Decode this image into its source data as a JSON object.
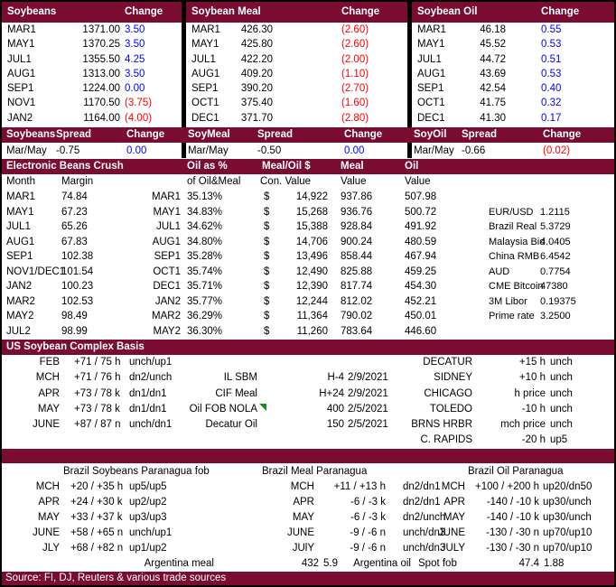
{
  "colors": {
    "header_bg": "#7A0B31",
    "positive": "#0000FF",
    "negative": "#FF0000",
    "comment_flag": "#1E8A1E",
    "border": "#000000"
  },
  "futures": {
    "panels": [
      {
        "title": "Soybeans",
        "change_label": "Change",
        "rows": [
          [
            "MAR1",
            "1371.00",
            "3.50",
            "up"
          ],
          [
            "MAY1",
            "1370.25",
            "3.50",
            "up"
          ],
          [
            "JUL1",
            "1355.50",
            "4.25",
            "up"
          ],
          [
            "AUG1",
            "1313.00",
            "3.50",
            "up"
          ],
          [
            "SEP1",
            "1224.00",
            "0.00",
            "up"
          ],
          [
            "NOV1",
            "1170.50",
            "(3.75)",
            "down"
          ],
          [
            "JAN2",
            "1164.00",
            "(4.00)",
            "down"
          ]
        ]
      },
      {
        "title": "Soybean Meal",
        "change_label": "Change",
        "rows": [
          [
            "MAR1",
            "426.30",
            "(2.60)",
            "down"
          ],
          [
            "MAY1",
            "425.80",
            "(2.60)",
            "down"
          ],
          [
            "JUL1",
            "422.20",
            "(2.00)",
            "down"
          ],
          [
            "AUG1",
            "409.20",
            "(1.10)",
            "down"
          ],
          [
            "SEP1",
            "390.20",
            "(2.70)",
            "down"
          ],
          [
            "OCT1",
            "375.40",
            "(1.60)",
            "down"
          ],
          [
            "DEC1",
            "371.70",
            "(2.80)",
            "down"
          ]
        ]
      },
      {
        "title": "Soybean Oil",
        "change_label": "Change",
        "rows": [
          [
            "MAR1",
            "46.18",
            "0.55",
            "up"
          ],
          [
            "MAY1",
            "45.52",
            "0.53",
            "up"
          ],
          [
            "JUL1",
            "44.72",
            "0.51",
            "up"
          ],
          [
            "AUG1",
            "43.69",
            "0.53",
            "up"
          ],
          [
            "SEP1",
            "42.54",
            "0.40",
            "up"
          ],
          [
            "OCT1",
            "41.75",
            "0.32",
            "up"
          ],
          [
            "DEC1",
            "41.30",
            "0.17",
            "up"
          ]
        ]
      }
    ]
  },
  "spreads": {
    "panels": [
      {
        "title": "Soybeans",
        "spread_label": "Spread",
        "change_label": "Change",
        "month": "Mar/May",
        "spread": "-0.75",
        "change": "0.00",
        "dir": "up"
      },
      {
        "title": "SoyMeal",
        "spread_label": "Spread",
        "change_label": "Change",
        "month": "Mar/May",
        "spread": "-0.50",
        "change": "0.00",
        "dir": "up"
      },
      {
        "title": "SoyOil",
        "spread_label": "Spread",
        "change_label": "Change",
        "month": "Mar/May",
        "spread": "-0.66",
        "change": "(0.02)",
        "dir": "down"
      }
    ]
  },
  "crush": {
    "title": "Electronic Beans Crush",
    "header": {
      "oil_pct": "Oil as %",
      "meal_oil": "Meal/Oil $",
      "meal": "Meal",
      "oil": "Oil"
    },
    "subheader": {
      "month": "Month",
      "margin": "Margin",
      "oil_pct": "of Oil&Meal",
      "con_value": "Con. Value",
      "meal_value": "Value",
      "oil_value": "Value"
    },
    "rows": [
      [
        "MAR1",
        "74.84",
        "MAR1",
        "35.13%",
        "$",
        "14,922",
        "937.86",
        "507.98",
        "",
        ""
      ],
      [
        "MAY1",
        "67.23",
        "MAY1",
        "34.83%",
        "$",
        "15,268",
        "936.76",
        "500.72",
        "EUR/USD",
        "1.2115"
      ],
      [
        "JUL1",
        "65.26",
        "JUL1",
        "34.62%",
        "$",
        "15,388",
        "928.84",
        "491.92",
        "Brazil Real",
        "5.3729"
      ],
      [
        "AUG1",
        "67.83",
        "AUG1",
        "34.80%",
        "$",
        "14,706",
        "900.24",
        "480.59",
        "Malaysia Bid",
        "4.0405"
      ],
      [
        "SEP1",
        "102.38",
        "SEP1",
        "35.28%",
        "$",
        "13,496",
        "858.44",
        "467.94",
        "China RMB",
        "6.4542"
      ],
      [
        "NOV1/DEC1",
        "101.54",
        "OCT1",
        "35.74%",
        "$",
        "12,490",
        "825.88",
        "459.25",
        "AUD",
        "0.7754"
      ],
      [
        "JAN2",
        "100.23",
        "DEC1",
        "35.71%",
        "$",
        "12,390",
        "817.74",
        "454.30",
        "CME Bitcoin",
        "47380"
      ],
      [
        "MAR2",
        "102.53",
        "JAN2",
        "35.77%",
        "$",
        "12,244",
        "812.02",
        "452.21",
        "3M Libor",
        "0.19375"
      ],
      [
        "MAY2",
        "98.49",
        "MAR2",
        "36.29%",
        "$",
        "11,364",
        "790.02",
        "450.01",
        "Prime rate",
        "3.2500"
      ],
      [
        "JUL2",
        "98.99",
        "MAY2",
        "36.30%",
        "$",
        "11,260",
        "783.64",
        "446.60",
        "",
        ""
      ]
    ]
  },
  "us_basis": {
    "title": "US Soybean Complex Basis",
    "rows": [
      [
        "FEB",
        "+71 / 75 h",
        "unch/up1",
        "",
        "",
        "",
        "DECATUR",
        "+15 h",
        "unch",
        false
      ],
      [
        "MCH",
        "+71 / 76 h",
        "dn2/unch",
        "IL SBM",
        "H-4",
        "2/9/2021",
        "SIDNEY",
        "+10 h",
        "unch",
        false
      ],
      [
        "APR",
        "+73 / 78 k",
        "dn1/dn1",
        "CIF Meal",
        "H+24",
        "2/9/2021",
        "CHICAGO",
        "h price",
        "unch",
        false
      ],
      [
        "MAY",
        "+73 / 78 k",
        "dn1/dn1",
        "Oil FOB NOLA",
        "400",
        "2/5/2021",
        "TOLEDO",
        "-10 h",
        "unch",
        true
      ],
      [
        "JUNE",
        "+87 / 87 n",
        "unch/dn1",
        "Decatur Oil",
        "150",
        "2/5/2021",
        "BRNS HRBR",
        "mch price",
        "unch",
        false
      ],
      [
        "",
        "",
        "",
        "",
        "",
        "",
        "C. RAPIDS",
        "-20 h",
        "up5",
        false
      ]
    ]
  },
  "brazil": {
    "panels": [
      {
        "title": "Brazil Soybeans Paranagua fob",
        "rows": [
          [
            "MCH",
            "+20 / +35 h",
            "up5/up5"
          ],
          [
            "APR",
            "+24 / +30 k",
            "up2/up2"
          ],
          [
            "MAY",
            "+33 / +37 k",
            "up3/up3"
          ],
          [
            "JUNE",
            "+58 / +65 n",
            "unch/up1"
          ],
          [
            "JLY",
            "+68 / +82 n",
            "up1/up2"
          ]
        ]
      },
      {
        "title": "Brazil Meal Paranagua",
        "rows": [
          [
            "MCH",
            "+11 / +13 h",
            "dn2/dn1"
          ],
          [
            "APR",
            "-6 / -3 k",
            "dn2/dn1"
          ],
          [
            "MAY",
            "-6 / -3 k",
            "dn2/unch"
          ],
          [
            "JUNE",
            "-9 / -6 n",
            "unch/dn3"
          ],
          [
            "JUlY",
            "-9 / -6 n",
            "unch/dn3"
          ]
        ]
      },
      {
        "title": "Brazil Oil Paranagua",
        "rows": [
          [
            "MCH",
            "+100 / +200 h",
            "up20/dn50"
          ],
          [
            "APR",
            "-140 / -10 k",
            "up30/unch"
          ],
          [
            "MAY",
            "-140 / -10 k",
            "up30/unch"
          ],
          [
            "JUNE",
            "-130 / -30 n",
            "up70/up10"
          ],
          [
            "JULY",
            "-130 / -30 n",
            "up70/up10"
          ]
        ]
      }
    ],
    "summary": {
      "argentina_meal_label": "Argentina meal",
      "argentina_meal_value": "432",
      "argentina_meal_extra": "5.9",
      "argentina_oil_label": "Argentina oil",
      "spot_fob_label": "Spot fob",
      "spot_fob_value": "47.4",
      "spot_fob_extra": "1.88"
    }
  },
  "footer": {
    "source": "Source: FI, DJ, Reuters & various trade sources"
  }
}
